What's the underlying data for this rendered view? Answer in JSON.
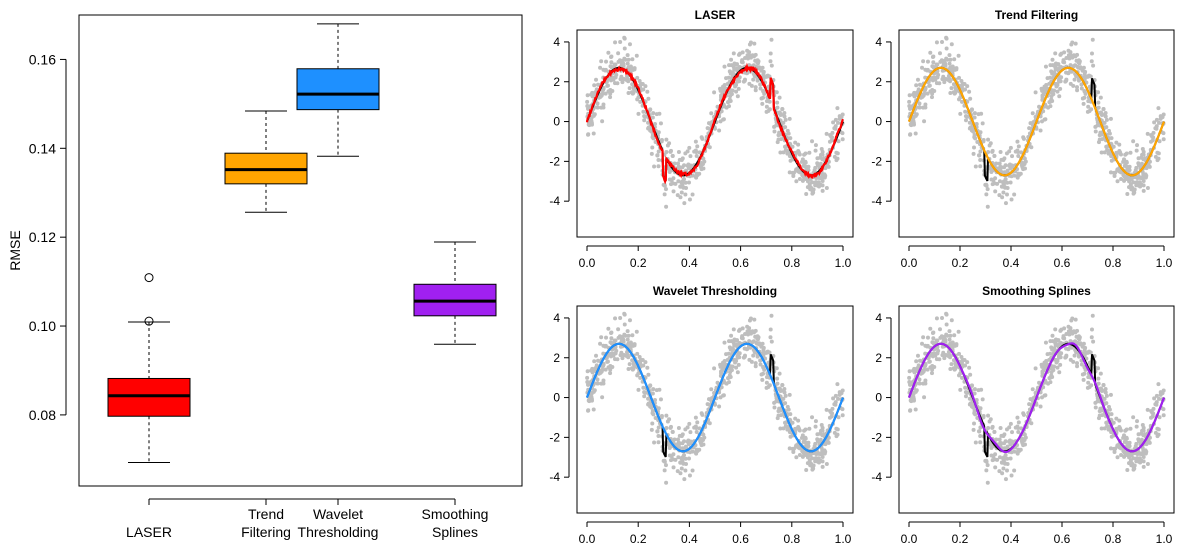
{
  "chart_data": [
    {
      "type": "box",
      "title": "",
      "xlabel": "",
      "ylabel": "RMSE",
      "ylim": [
        0.064,
        0.17
      ],
      "yticks": [
        "0.08",
        "0.10",
        "0.12",
        "0.14",
        "0.16"
      ],
      "ytick_values": [
        0.08,
        0.1,
        0.12,
        0.14,
        0.16
      ],
      "categories": [
        {
          "line1": "LASER",
          "line2": ""
        },
        {
          "line1": "Trend",
          "line2": "Filtering"
        },
        {
          "line1": "Wavelet",
          "line2": "Thresholding"
        },
        {
          "line1": "Smoothing",
          "line2": "Splines"
        }
      ],
      "boxes": [
        {
          "whisker_low": 0.0693,
          "q1": 0.0797,
          "median": 0.0843,
          "q3": 0.0882,
          "whisker_high": 0.1009,
          "outliers": [
            0.1011,
            0.1109
          ],
          "color": "#ff0000"
        },
        {
          "whisker_low": 0.1256,
          "q1": 0.132,
          "median": 0.1352,
          "q3": 0.1389,
          "whisker_high": 0.1484,
          "outliers": [],
          "color": "#ffa500"
        },
        {
          "whisker_low": 0.1382,
          "q1": 0.1487,
          "median": 0.1522,
          "q3": 0.1579,
          "whisker_high": 0.168,
          "outliers": [],
          "color": "#1e90ff"
        },
        {
          "whisker_low": 0.0959,
          "q1": 0.1023,
          "median": 0.1056,
          "q3": 0.1094,
          "whisker_high": 0.1189,
          "outliers": [],
          "color": "#a020f0"
        }
      ],
      "grid": false,
      "legend": "none"
    },
    {
      "type": "scatter+line",
      "title": "LASER",
      "xlim": [
        0,
        1
      ],
      "ylim": [
        -5.8,
        4.6
      ],
      "xticks": [
        "0.0",
        "0.2",
        "0.4",
        "0.6",
        "0.8",
        "1.0"
      ],
      "yticks": [
        "-4",
        "-2",
        "0",
        "2",
        "4"
      ],
      "true_function": "3*sin(4*pi*x) + jumps near x=0.3 (-1.5) and x=0.72 (+1.5)",
      "points_color": "#bebebe",
      "truth_color": "#000000",
      "fit_color": "#ff0000",
      "fit_style": "rough"
    },
    {
      "type": "scatter+line",
      "title": "Trend Filtering",
      "xlim": [
        0,
        1
      ],
      "ylim": [
        -5.8,
        4.6
      ],
      "xticks": [
        "0.0",
        "0.2",
        "0.4",
        "0.6",
        "0.8",
        "1.0"
      ],
      "yticks": [
        "-4",
        "-2",
        "0",
        "2",
        "4"
      ],
      "points_color": "#bebebe",
      "truth_color": "#000000",
      "fit_color": "#ffa500",
      "fit_style": "smooth"
    },
    {
      "type": "scatter+line",
      "title": "Wavelet Thresholding",
      "xlim": [
        0,
        1
      ],
      "ylim": [
        -5.8,
        4.6
      ],
      "xticks": [
        "0.0",
        "0.2",
        "0.4",
        "0.6",
        "0.8",
        "1.0"
      ],
      "yticks": [
        "-4",
        "-2",
        "0",
        "2",
        "4"
      ],
      "points_color": "#bebebe",
      "truth_color": "#000000",
      "fit_color": "#1e90ff",
      "fit_style": "smooth"
    },
    {
      "type": "scatter+line",
      "title": "Smoothing Splines",
      "xlim": [
        0,
        1
      ],
      "ylim": [
        -5.8,
        4.6
      ],
      "xticks": [
        "0.0",
        "0.2",
        "0.4",
        "0.6",
        "0.8",
        "1.0"
      ],
      "yticks": [
        "-4",
        "-2",
        "0",
        "2",
        "4"
      ],
      "points_color": "#bebebe",
      "truth_color": "#000000",
      "fit_color": "#a020f0",
      "fit_style": "wiggly"
    }
  ]
}
